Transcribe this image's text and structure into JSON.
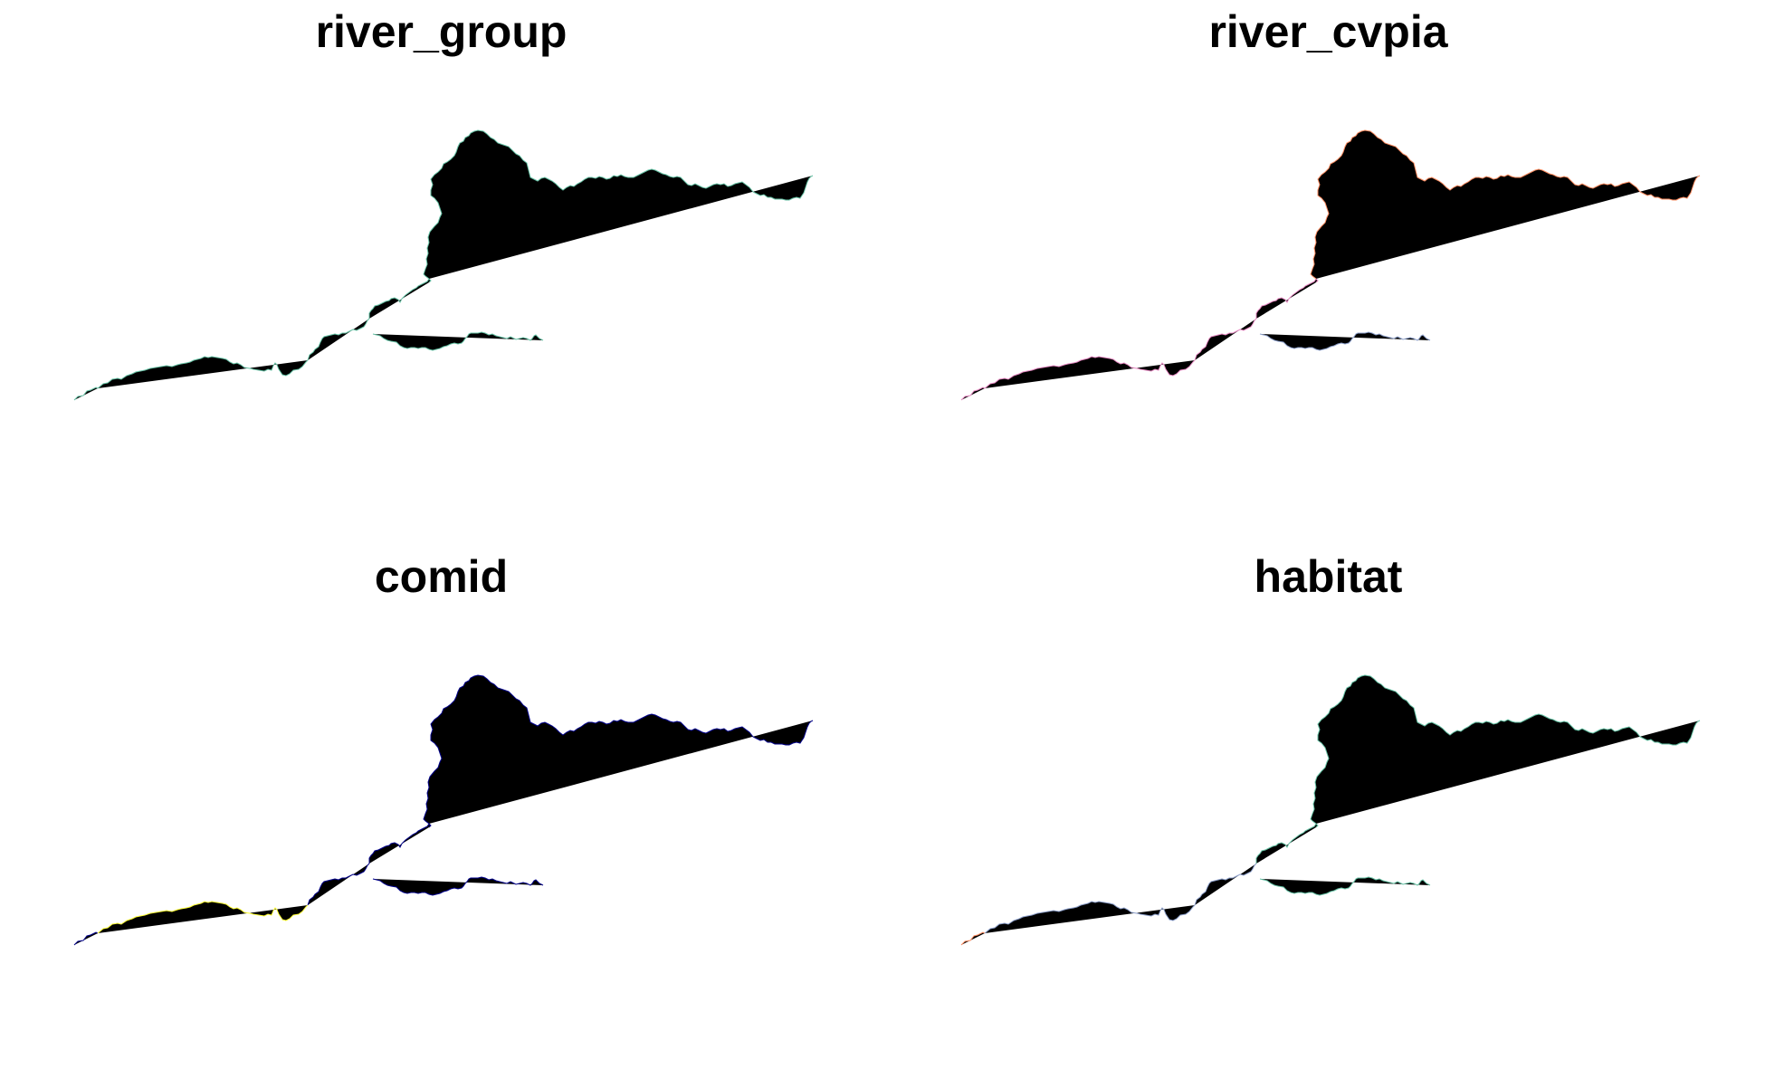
{
  "panels": [
    {
      "title": "river_group",
      "colors": {
        "seg_a": "#66c2a5",
        "seg_b": "#66c2a5",
        "seg_c": "#66c2a5",
        "seg_d": "#66c2a5",
        "seg_e": "#66c2a5",
        "seg_f": "#66c2a5"
      }
    },
    {
      "title": "river_cvpia",
      "colors": {
        "seg_a": "#e78ac3",
        "seg_b": "#e78ac3",
        "seg_c": "#e78ac3",
        "seg_d": "#e78ac3",
        "seg_e": "#fc8d62",
        "seg_f": "#8da0cb"
      }
    },
    {
      "title": "comid",
      "colors": {
        "seg_a": "#00008b",
        "seg_b": "#ffff33",
        "seg_c": "#00008b",
        "seg_d": "#00008b",
        "seg_e": "#00008b",
        "seg_f": "#00008b"
      }
    },
    {
      "title": "habitat",
      "colors": {
        "seg_a": "#fc8d62",
        "seg_b": "#8da0cb",
        "seg_c": "#8da0cb",
        "seg_d": "#66c2a5",
        "seg_e": "#66c2a5",
        "seg_f": "#66c2a5"
      }
    }
  ]
}
